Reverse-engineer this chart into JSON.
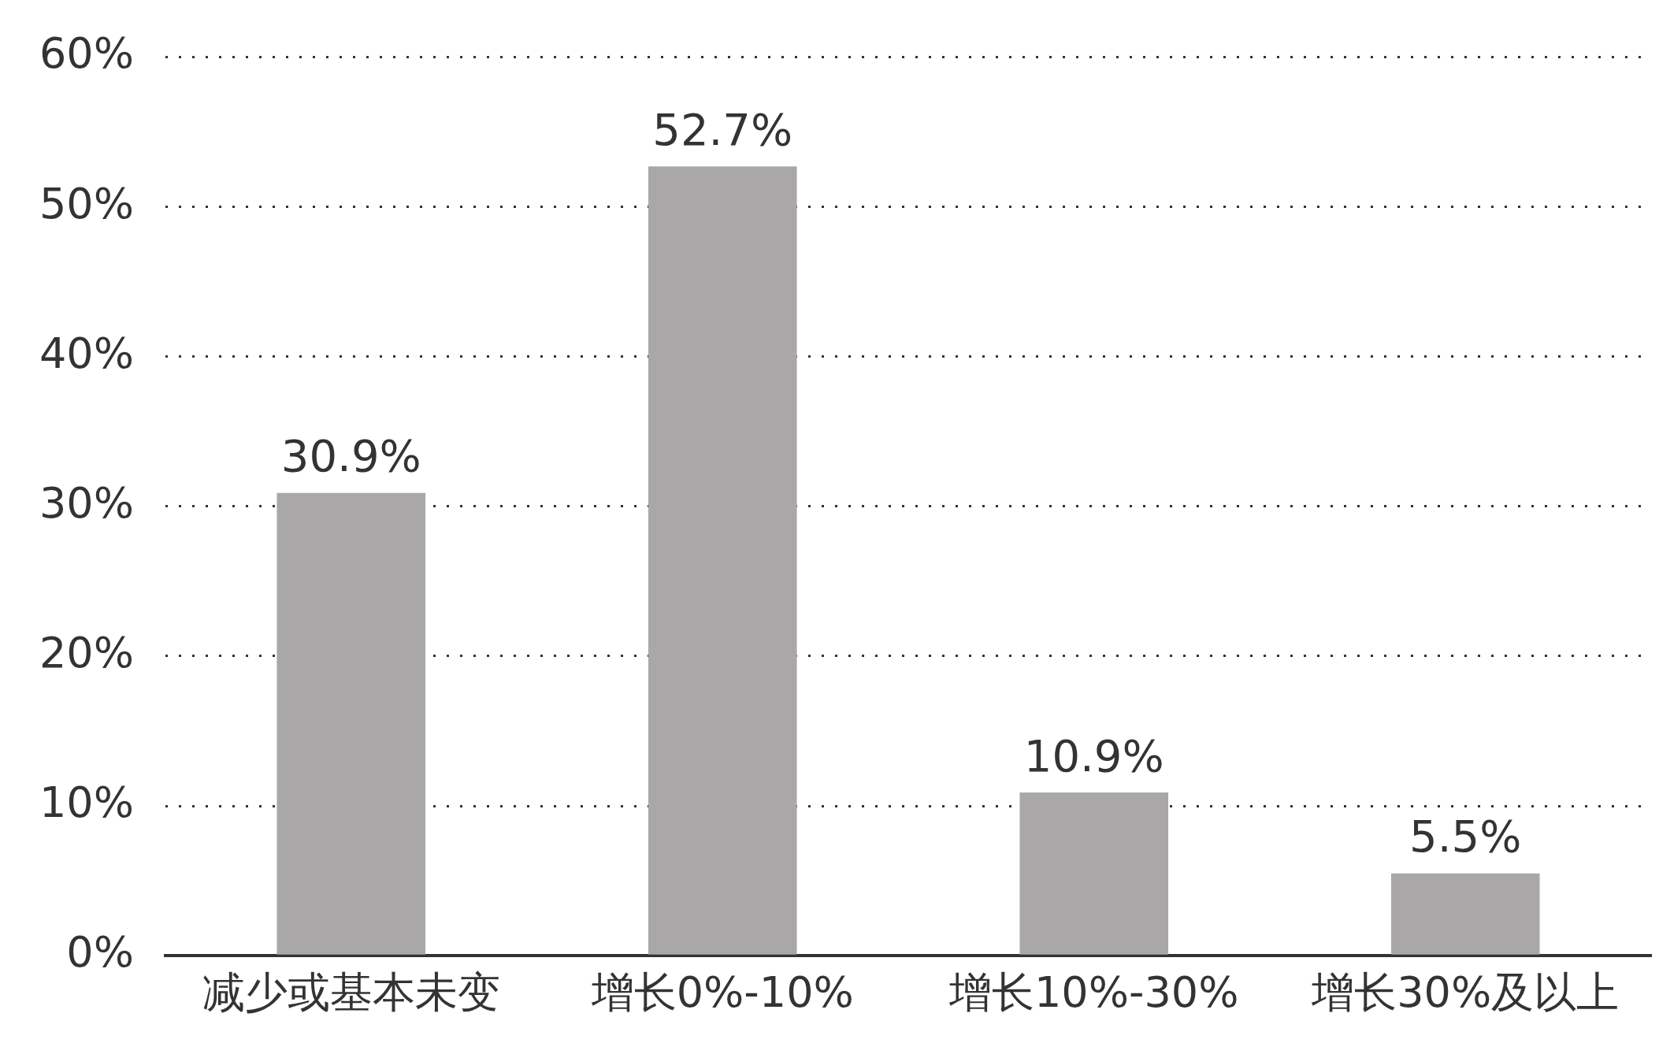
{
  "chart_data": {
    "type": "bar",
    "categories": [
      "减少或基本未变",
      "增长0%-10%",
      "增长10%-30%",
      "增长30%及以上"
    ],
    "values": [
      30.9,
      52.7,
      10.9,
      5.5
    ],
    "color": "#a9a7a7",
    "ylim": [
      0,
      60
    ],
    "yticks": [
      {
        "value": 0,
        "label": "0%"
      },
      {
        "value": 10,
        "label": "10%"
      },
      {
        "value": 20,
        "label": "20%"
      },
      {
        "value": 30,
        "label": "30%"
      },
      {
        "value": 40,
        "label": "40%"
      },
      {
        "value": 50,
        "label": "50%"
      },
      {
        "value": 60,
        "label": "60%"
      }
    ],
    "grid": "y",
    "legend": false,
    "value_labels": [
      "30.9%",
      "52.7%",
      "10.9%",
      "5.5%"
    ]
  }
}
